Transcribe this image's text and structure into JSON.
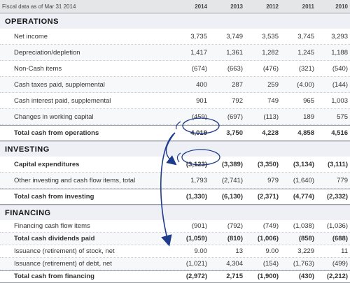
{
  "header": {
    "caption": "Fiscal data as of Mar 31 2014",
    "years": [
      "2014",
      "2013",
      "2012",
      "2011",
      "2010"
    ]
  },
  "sections": {
    "operations": {
      "title": "OPERATIONS",
      "rows": [
        {
          "label": "Net income",
          "values": [
            "3,735",
            "3,749",
            "3,535",
            "3,745",
            "3,293"
          ]
        },
        {
          "label": "Depreciation/depletion",
          "values": [
            "1,417",
            "1,361",
            "1,282",
            "1,245",
            "1,188"
          ]
        },
        {
          "label": "Non-Cash items",
          "values": [
            "(674)",
            "(663)",
            "(476)",
            "(321)",
            "(540)"
          ]
        },
        {
          "label": "Cash taxes paid, supplemental",
          "values": [
            "400",
            "287",
            "259",
            "(4.00)",
            "(144)"
          ]
        },
        {
          "label": "Cash interest paid, supplemental",
          "values": [
            "901",
            "792",
            "749",
            "965",
            "1,003"
          ]
        },
        {
          "label": "Changes in working capital",
          "values": [
            "(459)",
            "(697)",
            "(113)",
            "189",
            "575"
          ]
        }
      ],
      "total": {
        "label": "Total cash from operations",
        "values": [
          "4,019",
          "3,750",
          "4,228",
          "4,858",
          "4,516"
        ]
      }
    },
    "investing": {
      "title": "INVESTING",
      "rows": [
        {
          "label": "Capital expenditures",
          "values": [
            "(3,123)",
            "(3,389)",
            "(3,350)",
            "(3,134)",
            "(3,111)"
          ]
        },
        {
          "label": "Other investing and cash flow items, total",
          "values": [
            "1,793",
            "(2,741)",
            "979",
            "(1,640)",
            "779"
          ]
        }
      ],
      "total": {
        "label": "Total cash from investing",
        "values": [
          "(1,330)",
          "(6,130)",
          "(2,371)",
          "(4,774)",
          "(2,332)"
        ]
      }
    },
    "financing": {
      "title": "FINANCING",
      "rows": [
        {
          "label": "Financing cash flow items",
          "values": [
            "(901)",
            "(792)",
            "(749)",
            "(1,038)",
            "(1,036)"
          ]
        },
        {
          "label": "Total cash dividends paid",
          "values": [
            "(1,059)",
            "(810)",
            "(1,006)",
            "(858)",
            "(688)"
          ]
        },
        {
          "label": "Issuance (retirement) of stock, net",
          "values": [
            "9.00",
            "13",
            "9.00",
            "3,229",
            "11"
          ]
        },
        {
          "label": "Issuance (retirement) of debt, net",
          "values": [
            "(1,021)",
            "4,304",
            "(154)",
            "(1,763)",
            "(499)"
          ]
        }
      ],
      "total": {
        "label": "Total cash from financing",
        "values": [
          "(2,972)",
          "2,715",
          "(1,900)",
          "(430)",
          "(2,212)"
        ]
      }
    }
  },
  "annotation_color": "#1f3c8c"
}
